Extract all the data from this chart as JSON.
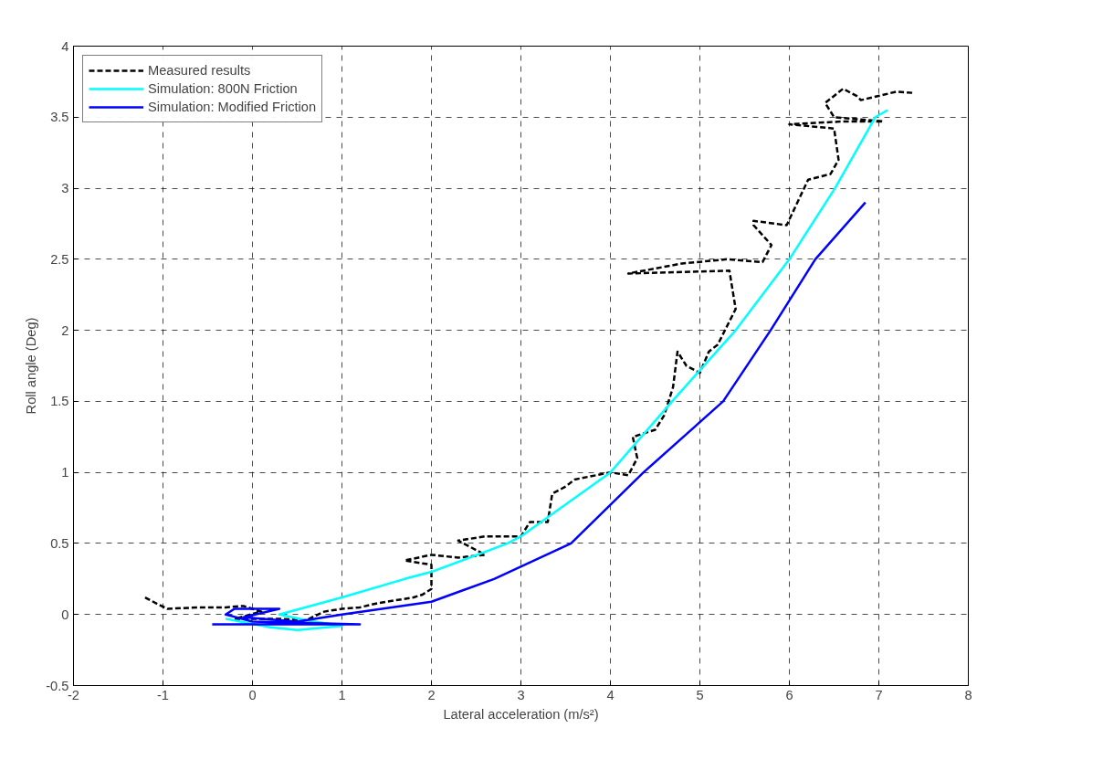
{
  "chart_data": {
    "type": "line",
    "xlabel": "Lateral acceleration (m/s²)",
    "ylabel": "Roll angle (Deg)",
    "xlim": [
      -2,
      8
    ],
    "ylim": [
      -0.5,
      4
    ],
    "xticks": [
      -2,
      -1,
      0,
      1,
      2,
      3,
      4,
      5,
      6,
      7,
      8
    ],
    "yticks": [
      -0.5,
      0,
      0.5,
      1,
      1.5,
      2,
      2.5,
      3,
      3.5,
      4
    ],
    "grid": true,
    "legend": "top left",
    "series": [
      {
        "name": "Measured results",
        "color": "#000000",
        "line_style": "dashed",
        "x": [
          -1.2,
          -1.05,
          -0.95,
          -0.6,
          -0.3,
          -0.1,
          0.0,
          0.1,
          -0.2,
          0.3,
          0.6,
          0.8,
          1.0,
          1.2,
          1.4,
          1.6,
          1.8,
          1.9,
          2.0,
          2.0,
          1.7,
          2.0,
          2.3,
          2.6,
          2.3,
          2.6,
          3.0,
          3.1,
          3.3,
          3.35,
          3.5,
          3.6,
          4.0,
          4.2,
          4.3,
          4.25,
          4.5,
          4.6,
          4.7,
          4.75,
          4.85,
          5.0,
          5.1,
          5.2,
          5.4,
          5.33,
          4.2,
          4.8,
          5.3,
          5.7,
          5.8,
          5.6,
          5.6,
          5.97,
          6.21,
          6.46,
          6.55,
          6.5,
          6.0,
          6.6,
          7.05,
          6.5,
          6.4,
          6.6,
          6.75,
          6.8,
          7.2,
          7.4
        ],
        "values": [
          0.12,
          0.07,
          0.04,
          0.05,
          0.05,
          0.06,
          0.04,
          0.02,
          -0.03,
          -0.03,
          -0.04,
          0.02,
          0.04,
          0.05,
          0.08,
          0.1,
          0.12,
          0.14,
          0.18,
          0.35,
          0.38,
          0.42,
          0.4,
          0.42,
          0.52,
          0.55,
          0.55,
          0.65,
          0.65,
          0.85,
          0.9,
          0.95,
          1.0,
          0.98,
          1.1,
          1.25,
          1.3,
          1.4,
          1.6,
          1.85,
          1.75,
          1.7,
          1.85,
          1.9,
          2.15,
          2.42,
          2.4,
          2.47,
          2.5,
          2.48,
          2.6,
          2.74,
          2.77,
          2.74,
          3.06,
          3.1,
          3.2,
          3.42,
          3.45,
          3.47,
          3.47,
          3.5,
          3.6,
          3.7,
          3.65,
          3.62,
          3.68,
          3.67
        ]
      },
      {
        "name": "Simulation: 800N Friction",
        "color": "#00ffff",
        "line_style": "solid",
        "x": [
          -0.3,
          0.2,
          0.5,
          1.0,
          0.6,
          0.3,
          1.0,
          1.7,
          2.0,
          2.85,
          3.0,
          4.0,
          4.69,
          5.4,
          6.0,
          6.51,
          6.96,
          7.1
        ],
        "values": [
          -0.03,
          -0.09,
          -0.11,
          -0.08,
          -0.04,
          0.0,
          0.12,
          0.25,
          0.3,
          0.5,
          0.55,
          1.0,
          1.5,
          2.0,
          2.5,
          3.0,
          3.5,
          3.55
        ]
      },
      {
        "name": "Simulation: Modified Friction",
        "color": "#0000ff",
        "line_style": "solid",
        "x": [
          -0.45,
          1.2,
          0.0,
          -0.3,
          -0.2,
          0.3,
          -0.1,
          0.5,
          1.0,
          2.0,
          2.7,
          3.56,
          4.37,
          5.26,
          5.79,
          6.29,
          6.85
        ],
        "values": [
          -0.07,
          -0.07,
          -0.05,
          0.0,
          0.04,
          0.04,
          -0.02,
          -0.05,
          0.0,
          0.09,
          0.25,
          0.5,
          1.0,
          1.5,
          2.0,
          2.5,
          2.9
        ]
      }
    ]
  }
}
